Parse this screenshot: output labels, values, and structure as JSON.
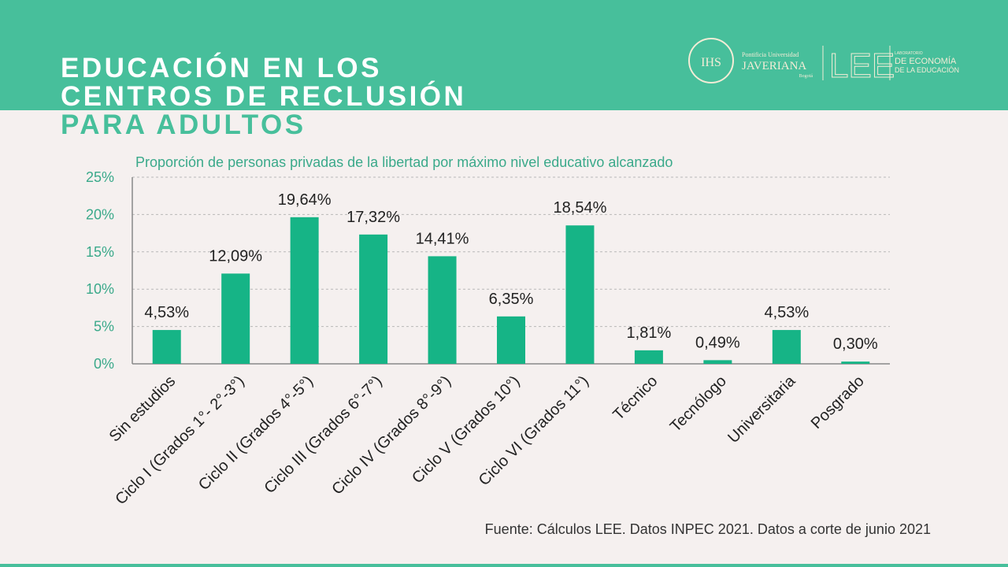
{
  "header": {
    "title_lines": [
      "EDUCACIÓN EN LOS",
      "CENTROS DE RECLUSIÓN",
      "PARA ADULTOS"
    ],
    "logo": {
      "emblem": "IHS",
      "university_small": "Pontificia Universidad",
      "university": "JAVERIANA",
      "city": "Bogotá",
      "lab_abbr": "LEE",
      "lab_small": "LABORATORIO",
      "lab_line1": "DE ECONOMÍA",
      "lab_line2": "DE LA EDUCACIÓN"
    }
  },
  "chart_data": {
    "type": "bar",
    "title": "Proporción de personas privadas de la libertad por máximo nivel educativo alcanzado",
    "categories": [
      "Sin estudios",
      "Ciclo I (Grados 1°- 2°-3°)",
      "Ciclo II (Grados 4°-5°)",
      "Ciclo III (Grados 6°-7°)",
      "Ciclo IV (Grados 8°-9°)",
      "Ciclo V (Grados 10°)",
      "Ciclo VI (Grados 11°)",
      "Técnico",
      "Tecnólogo",
      "Universitaria",
      "Posgrado"
    ],
    "values": [
      4.53,
      12.09,
      19.64,
      17.32,
      14.41,
      6.35,
      18.54,
      1.81,
      0.49,
      4.53,
      0.3
    ],
    "value_labels": [
      "4,53%",
      "12,09%",
      "19,64%",
      "17,32%",
      "14,41%",
      "6,35%",
      "18,54%",
      "1,81%",
      "0,49%",
      "4,53%",
      "0,30%"
    ],
    "color": "#16b486",
    "ylim": [
      0,
      25
    ],
    "yticks": [
      {
        "value": 0,
        "label": "0%"
      },
      {
        "value": 5,
        "label": "5%"
      },
      {
        "value": 10,
        "label": "10%"
      },
      {
        "value": 15,
        "label": "15%"
      },
      {
        "value": 20,
        "label": "20%"
      },
      {
        "value": 25,
        "label": "25%"
      }
    ],
    "grid": true
  },
  "footer": {
    "source": "Fuente: Cálculos LEE. Datos INPEC 2021. Datos a corte de junio 2021"
  }
}
